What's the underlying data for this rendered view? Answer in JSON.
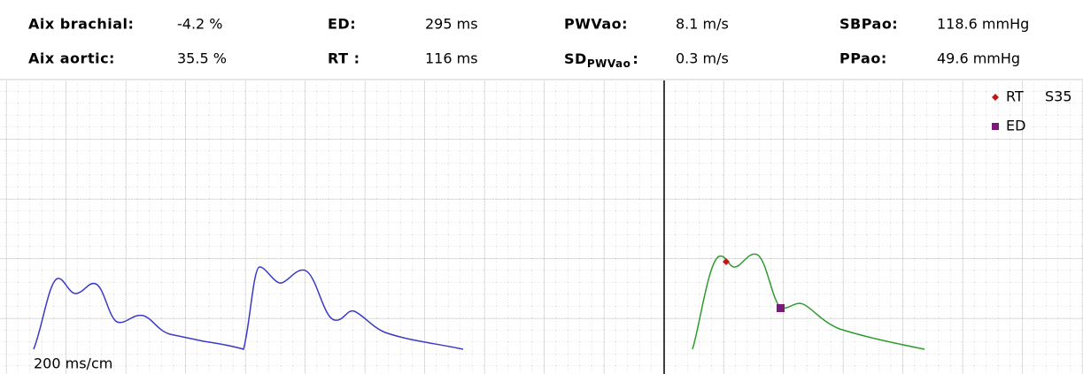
{
  "header": {
    "rows": [
      [
        {
          "label": "Aix brachial:",
          "value": "-4.2 %"
        },
        {
          "label": "ED:",
          "value": "295 ms"
        },
        {
          "label": "PWVao:",
          "value": "8.1 m/s"
        },
        {
          "label": "SBPao:",
          "value": "118.6 mmHg"
        }
      ],
      [
        {
          "label": "Aix aortic:",
          "value": "35.5 %"
        },
        {
          "label": "RT :",
          "value": "116 ms"
        },
        {
          "label": "SD",
          "sub": "PWVao",
          "suffix": ":",
          "value": "0.3 m/s"
        },
        {
          "label": "PPao:",
          "value": "49.6 mmHg"
        }
      ]
    ]
  },
  "legend": {
    "rt": "RT",
    "rt_extra": "S35",
    "ed": "ED"
  },
  "scale": "200 ms/cm"
}
